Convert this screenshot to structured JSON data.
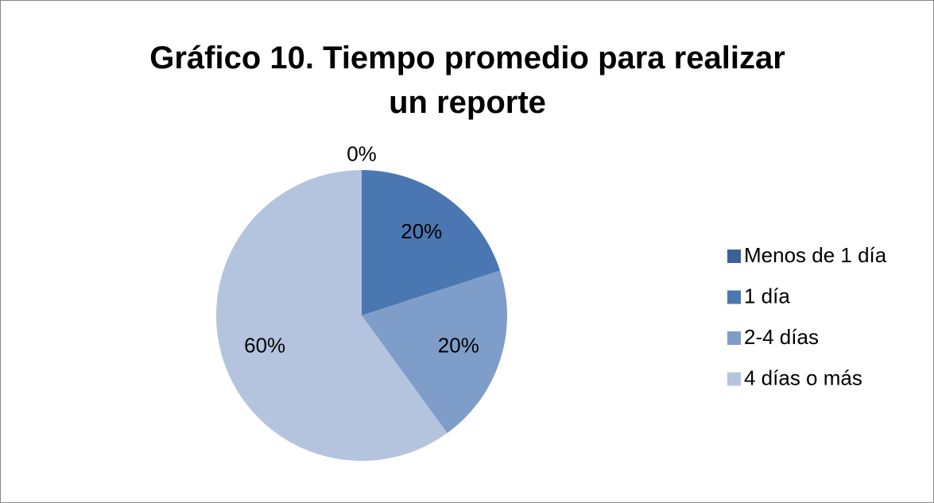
{
  "chart_data": {
    "type": "pie",
    "title": "Gráfico 10. Tiempo promedio para realizar un reporte",
    "categories": [
      "Menos de 1 día",
      "1 día",
      "2-4 días",
      "4 días o más"
    ],
    "values": [
      0,
      20,
      20,
      60
    ],
    "value_labels": [
      "0%",
      "20%",
      "20%",
      "60%"
    ],
    "colors": [
      "#3b6198",
      "#4a77b1",
      "#7f9dc9",
      "#b5c4de"
    ],
    "legend": "right"
  }
}
